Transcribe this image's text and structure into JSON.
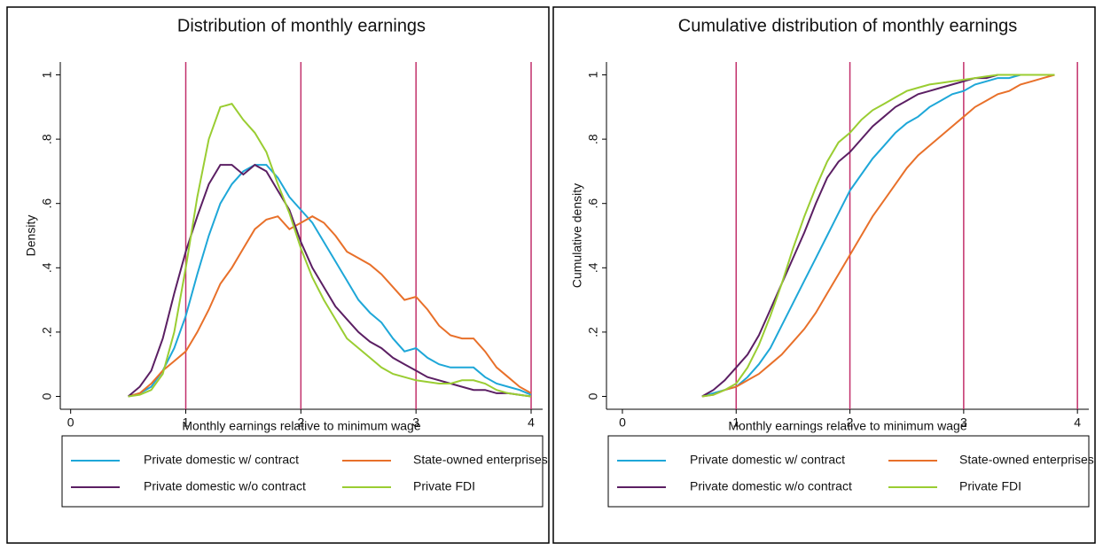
{
  "chart_data": [
    {
      "type": "line",
      "title": "Distribution of monthly earnings",
      "xlabel": "Monthly earnings relative to minimum wage",
      "ylabel": "Density",
      "x": [
        0.5,
        0.6,
        0.7,
        0.8,
        0.9,
        1.0,
        1.1,
        1.2,
        1.3,
        1.4,
        1.5,
        1.6,
        1.7,
        1.8,
        1.9,
        2.0,
        2.1,
        2.2,
        2.3,
        2.4,
        2.5,
        2.6,
        2.7,
        2.8,
        2.9,
        3.0,
        3.1,
        3.2,
        3.3,
        3.4,
        3.5,
        3.6,
        3.7,
        3.8,
        3.9,
        4.0
      ],
      "series": [
        {
          "name": "Private domestic w/ contract",
          "color": "#1ea7d8",
          "values": [
            0,
            0.01,
            0.03,
            0.08,
            0.15,
            0.25,
            0.38,
            0.5,
            0.6,
            0.66,
            0.7,
            0.72,
            0.72,
            0.68,
            0.62,
            0.58,
            0.54,
            0.48,
            0.42,
            0.36,
            0.3,
            0.26,
            0.23,
            0.18,
            0.14,
            0.15,
            0.12,
            0.1,
            0.09,
            0.09,
            0.09,
            0.06,
            0.04,
            0.03,
            0.02,
            0.005
          ]
        },
        {
          "name": "State-owned enterprises",
          "color": "#e8702a",
          "values": [
            0,
            0.01,
            0.04,
            0.08,
            0.11,
            0.14,
            0.2,
            0.27,
            0.35,
            0.4,
            0.46,
            0.52,
            0.55,
            0.56,
            0.52,
            0.54,
            0.56,
            0.54,
            0.5,
            0.45,
            0.43,
            0.41,
            0.38,
            0.34,
            0.3,
            0.31,
            0.27,
            0.22,
            0.19,
            0.18,
            0.18,
            0.14,
            0.09,
            0.06,
            0.03,
            0.01
          ]
        },
        {
          "name": "Private domestic w/o contract",
          "color": "#5b1f63",
          "values": [
            0,
            0.03,
            0.08,
            0.18,
            0.32,
            0.45,
            0.56,
            0.66,
            0.72,
            0.72,
            0.69,
            0.72,
            0.7,
            0.64,
            0.58,
            0.48,
            0.4,
            0.34,
            0.28,
            0.24,
            0.2,
            0.17,
            0.15,
            0.12,
            0.1,
            0.08,
            0.06,
            0.05,
            0.04,
            0.03,
            0.02,
            0.02,
            0.01,
            0.01,
            0.005,
            0
          ]
        },
        {
          "name": "Private FDI",
          "color": "#9acd32",
          "values": [
            0,
            0.005,
            0.02,
            0.07,
            0.2,
            0.4,
            0.62,
            0.8,
            0.9,
            0.91,
            0.86,
            0.82,
            0.76,
            0.66,
            0.57,
            0.46,
            0.37,
            0.3,
            0.24,
            0.18,
            0.15,
            0.12,
            0.09,
            0.07,
            0.06,
            0.05,
            0.045,
            0.04,
            0.04,
            0.05,
            0.05,
            0.04,
            0.02,
            0.01,
            0.005,
            0
          ]
        }
      ],
      "xlim": [
        -0.09,
        4.1
      ],
      "xticks": [
        0,
        1,
        2,
        3,
        4
      ],
      "ylim": [
        -0.04,
        1.04
      ],
      "yticks": [
        0,
        {
          "value": 0.2,
          "label": ".2"
        },
        {
          "value": 0.4,
          "label": ".4"
        },
        {
          "value": 0.6,
          "label": ".6"
        },
        {
          "value": 0.8,
          "label": ".8"
        },
        1
      ],
      "xlines": [
        1,
        2,
        3,
        4
      ],
      "xline_color": "#c2306b"
    },
    {
      "type": "line",
      "title": "Cumulative distribution of monthly earnings",
      "xlabel": "Monthly earnings relative to minimum wage",
      "ylabel": "Cumulative density",
      "x": [
        0.7,
        0.8,
        0.9,
        1.0,
        1.1,
        1.2,
        1.3,
        1.4,
        1.5,
        1.6,
        1.7,
        1.8,
        1.9,
        2.0,
        2.1,
        2.2,
        2.3,
        2.4,
        2.5,
        2.6,
        2.7,
        2.8,
        2.9,
        3.0,
        3.1,
        3.2,
        3.3,
        3.4,
        3.5,
        3.6,
        3.7,
        3.8
      ],
      "series": [
        {
          "name": "Private domestic w/ contract",
          "color": "#1ea7d8",
          "values": [
            0,
            0.01,
            0.02,
            0.03,
            0.06,
            0.1,
            0.15,
            0.22,
            0.29,
            0.36,
            0.43,
            0.5,
            0.57,
            0.64,
            0.69,
            0.74,
            0.78,
            0.82,
            0.85,
            0.87,
            0.9,
            0.92,
            0.94,
            0.95,
            0.97,
            0.98,
            0.99,
            0.99,
            1,
            1,
            1,
            1
          ]
        },
        {
          "name": "State-owned enterprises",
          "color": "#e8702a",
          "values": [
            0,
            0.005,
            0.02,
            0.03,
            0.05,
            0.07,
            0.1,
            0.13,
            0.17,
            0.21,
            0.26,
            0.32,
            0.38,
            0.44,
            0.5,
            0.56,
            0.61,
            0.66,
            0.71,
            0.75,
            0.78,
            0.81,
            0.84,
            0.87,
            0.9,
            0.92,
            0.94,
            0.95,
            0.97,
            0.98,
            0.99,
            1
          ]
        },
        {
          "name": "Private domestic w/o contract",
          "color": "#5b1f63",
          "values": [
            0,
            0.02,
            0.05,
            0.09,
            0.13,
            0.19,
            0.27,
            0.35,
            0.43,
            0.51,
            0.6,
            0.68,
            0.73,
            0.76,
            0.8,
            0.84,
            0.87,
            0.9,
            0.92,
            0.94,
            0.95,
            0.96,
            0.97,
            0.98,
            0.99,
            0.99,
            1,
            1,
            1,
            1,
            1,
            1
          ]
        },
        {
          "name": "Private FDI",
          "color": "#9acd32",
          "values": [
            0,
            0.005,
            0.02,
            0.04,
            0.09,
            0.16,
            0.25,
            0.35,
            0.46,
            0.56,
            0.65,
            0.73,
            0.79,
            0.82,
            0.86,
            0.89,
            0.91,
            0.93,
            0.95,
            0.96,
            0.97,
            0.975,
            0.98,
            0.985,
            0.99,
            0.995,
            1,
            1,
            1,
            1,
            1,
            1
          ]
        }
      ],
      "xlim": [
        -0.14,
        4.1
      ],
      "xticks": [
        0,
        1,
        2,
        3,
        4
      ],
      "ylim": [
        -0.04,
        1.04
      ],
      "yticks": [
        0,
        {
          "value": 0.2,
          "label": ".2"
        },
        {
          "value": 0.4,
          "label": ".4"
        },
        {
          "value": 0.6,
          "label": ".6"
        },
        {
          "value": 0.8,
          "label": ".8"
        },
        1
      ],
      "xlines": [
        1,
        2,
        3,
        4
      ],
      "xline_color": "#c2306b"
    }
  ]
}
